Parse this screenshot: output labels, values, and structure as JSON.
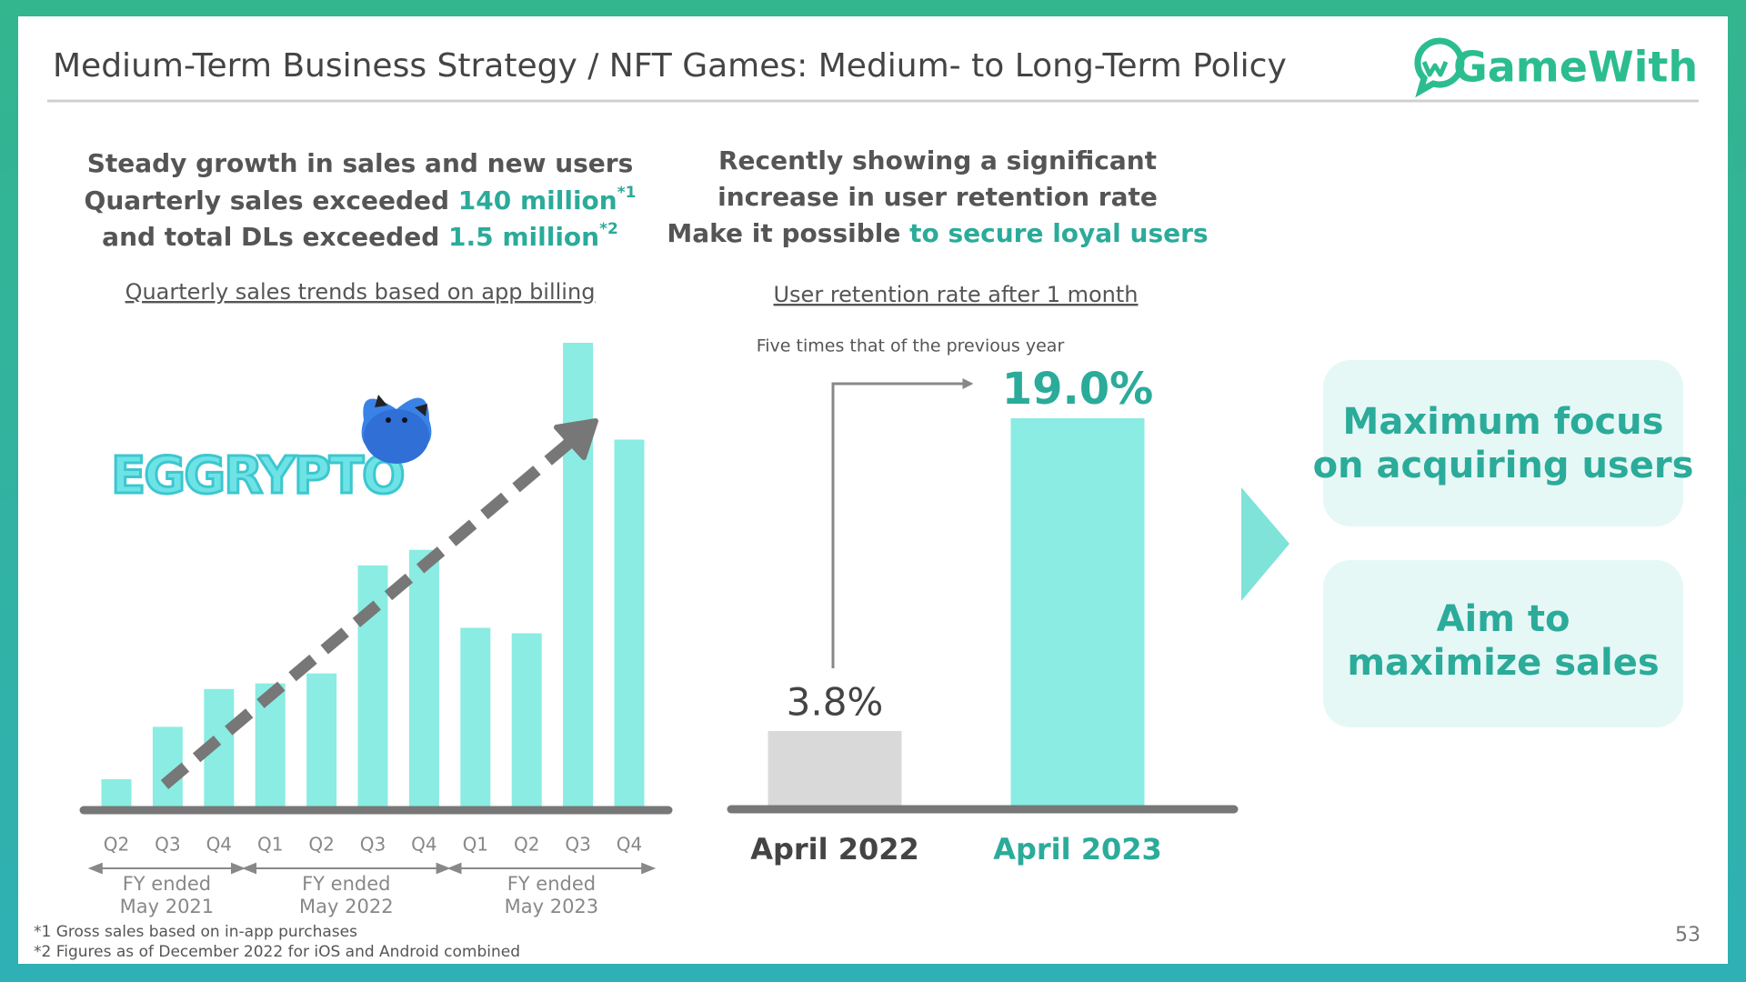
{
  "header": {
    "title": "Medium-Term Business Strategy / NFT Games: Medium- to Long-Term Policy",
    "logo": "GameWith"
  },
  "left_headline": {
    "line1": "Steady growth in sales and new users",
    "line2": [
      "Quarterly sales exceeded ",
      "140 million",
      "*1"
    ],
    "line3": [
      "and total DLs exceeded ",
      "1.5 million",
      "*2"
    ]
  },
  "right_headline": {
    "line1": "Recently showing a significant",
    "line2": "increase in user retention rate",
    "line3": [
      "Make it possible ",
      "to secure loyal users"
    ]
  },
  "game_logo": "EGGRYPTO",
  "chart_data": [
    {
      "type": "bar",
      "title": "Quarterly sales trends based on app billing",
      "categories": [
        "Q2",
        "Q3",
        "Q4",
        "Q1",
        "Q2",
        "Q3",
        "Q4",
        "Q1",
        "Q2",
        "Q3",
        "Q4"
      ],
      "values": [
        27,
        74,
        108,
        113,
        122,
        219,
        233,
        163,
        158,
        419,
        332
      ],
      "color": "#8aece2",
      "groups": [
        "FY ended\nMay 2021",
        "FY ended\nMay 2022",
        "FY ended\nMay 2023"
      ]
    },
    {
      "type": "bar",
      "title": "User retention rate after 1 month",
      "annotation": "Five times that of the previous year",
      "categories": [
        "April 2022",
        "April 2023"
      ],
      "values": [
        3.8,
        19.0
      ],
      "value_labels": [
        "3.8%",
        "19.0%"
      ],
      "colors": [
        "#d9d9d9",
        "#8aece2"
      ]
    }
  ],
  "callouts": [
    "Maximum focus\non acquiring users",
    "Aim to\nmaximize sales"
  ],
  "footnotes": [
    "*1 Gross sales based on in-app purchases",
    "*2 Figures as of December 2022 for iOS and Android combined"
  ],
  "page_number": "53"
}
